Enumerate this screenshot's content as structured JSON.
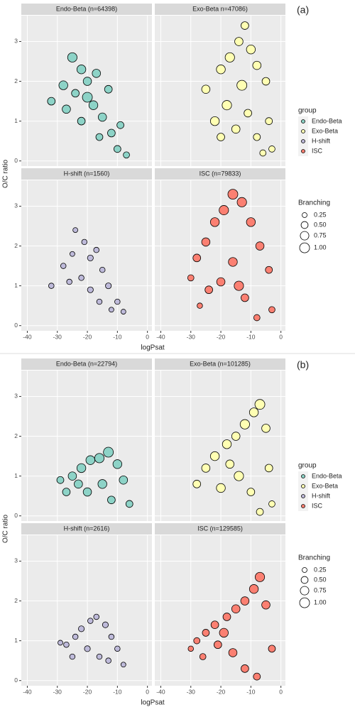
{
  "chart_data": [
    {
      "type": "scatter",
      "panel_label": "(a)",
      "xlabel": "logPsat",
      "ylabel": "O/C ratio",
      "xlim": [
        -42,
        1.5
      ],
      "ylim": [
        -0.13,
        3.65
      ],
      "xticks": [
        -40,
        -30,
        -20,
        -10,
        0
      ],
      "yticks": [
        0,
        1,
        2,
        3
      ],
      "grid": true,
      "legend_title": "group",
      "size_title": "Branching",
      "size_ticks": [
        0.25,
        {
          "value": 0.5,
          "label": "0.50"
        },
        0.75,
        {
          "value": 1,
          "label": "1.00"
        }
      ],
      "series": [
        {
          "name": "Endo-Beta",
          "facet": "Endo-Beta (n=64398)",
          "color": "#8dd3c7",
          "x": [
            -32,
            -28,
            -25,
            -22,
            -20,
            -27,
            -22,
            -18,
            -15,
            -12,
            -10,
            -7,
            -16,
            -20,
            -13,
            -9,
            -24,
            -17
          ],
          "y": [
            1.5,
            1.9,
            2.6,
            2.3,
            2.0,
            1.3,
            1.0,
            1.4,
            1.1,
            0.7,
            0.3,
            0.15,
            0.6,
            1.6,
            1.8,
            0.9,
            1.7,
            2.2
          ],
          "size": [
            0.6,
            0.8,
            0.9,
            0.8,
            0.7,
            0.7,
            0.6,
            0.8,
            0.7,
            0.6,
            0.5,
            0.4,
            0.5,
            1.0,
            0.6,
            0.5,
            0.6,
            0.7
          ]
        },
        {
          "name": "Exo-Beta",
          "facet": "Exo-Beta n=47086)",
          "color": "#ffffb3",
          "x": [
            -25,
            -20,
            -17,
            -14,
            -12,
            -10,
            -8,
            -5,
            -4,
            -3,
            -22,
            -18,
            -15,
            -11,
            -8,
            -6,
            -13,
            -20
          ],
          "y": [
            1.8,
            2.3,
            2.6,
            3.0,
            3.4,
            2.8,
            2.4,
            2.0,
            1.0,
            0.3,
            1.0,
            1.4,
            0.8,
            1.2,
            0.6,
            0.2,
            1.9,
            0.6
          ],
          "size": [
            0.7,
            0.8,
            0.9,
            0.7,
            0.6,
            0.8,
            0.7,
            0.6,
            0.5,
            0.4,
            0.8,
            0.9,
            0.7,
            0.6,
            0.5,
            0.4,
            1.0,
            0.6
          ]
        },
        {
          "name": "H-shift",
          "facet": "H-shift (n=1560)",
          "color": "#bebada",
          "x": [
            -32,
            -28,
            -25,
            -24,
            -21,
            -19,
            -17,
            -15,
            -13,
            -10,
            -8,
            -22,
            -19,
            -16,
            -12,
            -26
          ],
          "y": [
            1.0,
            1.5,
            1.8,
            2.4,
            2.1,
            1.7,
            1.9,
            1.4,
            1.0,
            0.6,
            0.35,
            1.2,
            0.9,
            0.6,
            0.4,
            1.1
          ],
          "size": [
            0.3,
            0.3,
            0.25,
            0.25,
            0.3,
            0.35,
            0.3,
            0.3,
            0.35,
            0.3,
            0.25,
            0.3,
            0.35,
            0.3,
            0.25,
            0.3
          ]
        },
        {
          "name": "ISC",
          "facet": "ISC (n=79833)",
          "color": "#fb8072",
          "x": [
            -30,
            -28,
            -25,
            -22,
            -19,
            -16,
            -13,
            -10,
            -7,
            -4,
            -3,
            -24,
            -20,
            -16,
            -12,
            -8,
            -14,
            -27
          ],
          "y": [
            1.2,
            1.7,
            2.1,
            2.6,
            2.9,
            3.3,
            3.1,
            2.6,
            2.0,
            1.4,
            0.4,
            0.9,
            1.1,
            1.6,
            0.7,
            0.2,
            1.0,
            0.5
          ],
          "size": [
            0.4,
            0.6,
            0.7,
            0.8,
            0.9,
            1.0,
            0.9,
            0.8,
            0.7,
            0.5,
            0.4,
            0.6,
            0.7,
            0.8,
            0.6,
            0.4,
            0.9,
            0.3
          ]
        }
      ]
    },
    {
      "type": "scatter",
      "panel_label": "(b)",
      "xlabel": "logPsat",
      "ylabel": "O/C ratio",
      "xlim": [
        -42,
        1.5
      ],
      "ylim": [
        -0.13,
        3.65
      ],
      "xticks": [
        -40,
        -30,
        -20,
        -10,
        0
      ],
      "yticks": [
        0,
        1,
        2,
        3
      ],
      "grid": true,
      "legend_title": "group",
      "size_title": "Branching",
      "size_ticks": [
        0.25,
        {
          "value": 0.5,
          "label": "0.50"
        },
        0.75,
        {
          "value": 1,
          "label": "1.00"
        }
      ],
      "series": [
        {
          "name": "Endo-Beta",
          "facet": "Endo-Beta (n=22794)",
          "color": "#8dd3c7",
          "x": [
            -29,
            -27,
            -25,
            -22,
            -19,
            -16,
            -13,
            -10,
            -8,
            -6,
            -20,
            -15,
            -12,
            -23
          ],
          "y": [
            0.9,
            0.6,
            1.0,
            1.2,
            1.4,
            1.45,
            1.6,
            1.3,
            0.9,
            0.3,
            0.6,
            0.8,
            0.4,
            0.8
          ],
          "size": [
            0.5,
            0.6,
            0.7,
            0.8,
            0.8,
            0.9,
            1.0,
            0.8,
            0.7,
            0.5,
            0.7,
            0.8,
            0.6,
            0.7
          ]
        },
        {
          "name": "Exo-Beta",
          "facet": "Exo-Beta (n=101285)",
          "color": "#ffffb3",
          "x": [
            -28,
            -25,
            -22,
            -18,
            -15,
            -12,
            -9,
            -7,
            -5,
            -4,
            -3,
            -20,
            -14,
            -10,
            -7,
            -17
          ],
          "y": [
            0.8,
            1.2,
            1.5,
            1.8,
            2.0,
            2.3,
            2.6,
            2.8,
            2.2,
            1.2,
            0.3,
            0.7,
            1.0,
            0.6,
            0.1,
            1.3
          ],
          "size": [
            0.6,
            0.7,
            0.8,
            0.8,
            0.7,
            0.9,
            0.8,
            1.0,
            0.7,
            0.6,
            0.4,
            0.8,
            0.9,
            0.6,
            0.5,
            0.7
          ]
        },
        {
          "name": "H-shift",
          "facet": "H-shift (n=2616)",
          "color": "#bebada",
          "x": [
            -29,
            -27,
            -24,
            -22,
            -19,
            -17,
            -14,
            -12,
            -10,
            -8,
            -20,
            -16,
            -25,
            -13
          ],
          "y": [
            0.95,
            0.9,
            1.1,
            1.3,
            1.5,
            1.6,
            1.4,
            1.1,
            0.8,
            0.4,
            0.8,
            0.6,
            0.6,
            0.5
          ],
          "size": [
            0.25,
            0.3,
            0.3,
            0.35,
            0.3,
            0.3,
            0.35,
            0.3,
            0.3,
            0.25,
            0.35,
            0.3,
            0.3,
            0.3
          ]
        },
        {
          "name": "ISC",
          "facet": "ISC (n=129585)",
          "color": "#fb8072",
          "x": [
            -30,
            -28,
            -25,
            -22,
            -18,
            -15,
            -12,
            -9,
            -7,
            -5,
            -3,
            -26,
            -21,
            -16,
            -12,
            -8,
            -19
          ],
          "y": [
            0.8,
            1.0,
            1.2,
            1.4,
            1.6,
            1.8,
            2.0,
            2.3,
            2.6,
            1.9,
            0.8,
            0.6,
            0.9,
            0.7,
            0.3,
            0.1,
            1.2
          ],
          "size": [
            0.3,
            0.4,
            0.5,
            0.6,
            0.6,
            0.7,
            0.7,
            0.8,
            0.9,
            0.7,
            0.5,
            0.4,
            0.6,
            0.7,
            0.6,
            0.5,
            0.8
          ]
        }
      ]
    }
  ]
}
